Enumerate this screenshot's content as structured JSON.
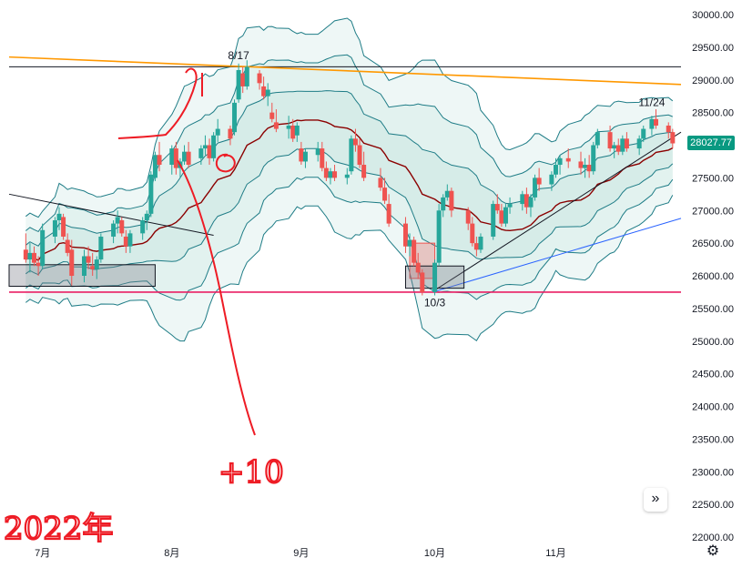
{
  "chart_data": {
    "type": "candlestick",
    "ylim": [
      21950,
      30100
    ],
    "y_ticks": [
      30000,
      29500,
      29000,
      28500,
      28000,
      27500,
      27000,
      26500,
      26000,
      25500,
      25000,
      24500,
      24000,
      23500,
      23000,
      22500,
      22000
    ],
    "y_tick_labels": [
      "30000.00",
      "29500.00",
      "29000.00",
      "28500.00",
      "28000.00",
      "27500.00",
      "27000.00",
      "26500.00",
      "26000.00",
      "25500.00",
      "25000.00",
      "24500.00",
      "24000.00",
      "23500.00",
      "23000.00",
      "22500.00",
      "22000.00"
    ],
    "x_labels": [
      "7月",
      "8月",
      "9月",
      "10月",
      "11月"
    ],
    "x_label_dates": [
      "2022-07-01",
      "2022-08-01",
      "2022-09-01",
      "2022-10-03",
      "2022-11-01"
    ],
    "dates": [
      "2022-06-27",
      "2022-06-28",
      "2022-06-29",
      "2022-06-30",
      "2022-07-01",
      "2022-07-04",
      "2022-07-05",
      "2022-07-06",
      "2022-07-07",
      "2022-07-08",
      "2022-07-11",
      "2022-07-12",
      "2022-07-13",
      "2022-07-14",
      "2022-07-15",
      "2022-07-18",
      "2022-07-19",
      "2022-07-20",
      "2022-07-21",
      "2022-07-22",
      "2022-07-25",
      "2022-07-26",
      "2022-07-27",
      "2022-07-28",
      "2022-07-29",
      "2022-08-01",
      "2022-08-02",
      "2022-08-03",
      "2022-08-04",
      "2022-08-05",
      "2022-08-08",
      "2022-08-09",
      "2022-08-10",
      "2022-08-11",
      "2022-08-12",
      "2022-08-15",
      "2022-08-16",
      "2022-08-17",
      "2022-08-18",
      "2022-08-19",
      "2022-08-22",
      "2022-08-23",
      "2022-08-24",
      "2022-08-25",
      "2022-08-26",
      "2022-08-29",
      "2022-08-30",
      "2022-08-31",
      "2022-09-01",
      "2022-09-02",
      "2022-09-05",
      "2022-09-06",
      "2022-09-07",
      "2022-09-08",
      "2022-09-09",
      "2022-09-12",
      "2022-09-13",
      "2022-09-14",
      "2022-09-15",
      "2022-09-16",
      "2022-09-20",
      "2022-09-21",
      "2022-09-22",
      "2022-09-26",
      "2022-09-27",
      "2022-09-28",
      "2022-09-29",
      "2022-09-30",
      "2022-10-03",
      "2022-10-04",
      "2022-10-05",
      "2022-10-06",
      "2022-10-07",
      "2022-10-11",
      "2022-10-12",
      "2022-10-13",
      "2022-10-14",
      "2022-10-17",
      "2022-10-18",
      "2022-10-19",
      "2022-10-20",
      "2022-10-21",
      "2022-10-24",
      "2022-10-25",
      "2022-10-26",
      "2022-10-27",
      "2022-10-28",
      "2022-10-31",
      "2022-11-01",
      "2022-11-02",
      "2022-11-04",
      "2022-11-07",
      "2022-11-08",
      "2022-11-09",
      "2022-11-10",
      "2022-11-11",
      "2022-11-14",
      "2022-11-15",
      "2022-11-16",
      "2022-11-17",
      "2022-11-18",
      "2022-11-21",
      "2022-11-22",
      "2022-11-24",
      "2022-11-25",
      "2022-11-28",
      "2022-11-29",
      "2022-11-30"
    ],
    "ohlc": [
      [
        26400,
        26650,
        26200,
        26250
      ],
      [
        26250,
        26500,
        26050,
        26350
      ],
      [
        26350,
        26450,
        26150,
        26200
      ],
      [
        26200,
        26300,
        26000,
        26150
      ],
      [
        26150,
        26800,
        26100,
        26700
      ],
      [
        26600,
        26900,
        26500,
        26850
      ],
      [
        26850,
        27050,
        26700,
        26950
      ],
      [
        26900,
        26950,
        26550,
        26600
      ],
      [
        26550,
        26650,
        26300,
        26350
      ],
      [
        26400,
        26550,
        25850,
        26000
      ],
      [
        26000,
        26400,
        25900,
        26300
      ],
      [
        26300,
        26450,
        26100,
        26200
      ],
      [
        26150,
        26350,
        26000,
        26100
      ],
      [
        26100,
        26300,
        25950,
        26250
      ],
      [
        26250,
        26650,
        26200,
        26600
      ],
      [
        26600,
        26850,
        26500,
        26800
      ],
      [
        26800,
        27000,
        26650,
        26900
      ],
      [
        26850,
        26900,
        26600,
        26650
      ],
      [
        26600,
        26700,
        26350,
        26450
      ],
      [
        26450,
        26700,
        26350,
        26650
      ],
      [
        26650,
        26900,
        26550,
        26850
      ],
      [
        26850,
        27000,
        26700,
        26950
      ],
      [
        26950,
        27600,
        26900,
        27550
      ],
      [
        27500,
        27900,
        27450,
        27850
      ],
      [
        27850,
        28050,
        27600,
        27700
      ],
      [
        27700,
        28000,
        27550,
        27950
      ],
      [
        27950,
        28050,
        27550,
        27650
      ],
      [
        27650,
        27800,
        27500,
        27750
      ],
      [
        27750,
        28000,
        27700,
        27900
      ],
      [
        27900,
        28050,
        27650,
        27700
      ],
      [
        27800,
        28000,
        27700,
        27950
      ],
      [
        27950,
        28150,
        27850,
        28000
      ],
      [
        28000,
        28100,
        27700,
        27800
      ],
      [
        27800,
        28200,
        27750,
        28150
      ],
      [
        28150,
        28400,
        28050,
        28250
      ],
      [
        28250,
        28300,
        28000,
        28100
      ],
      [
        28200,
        28700,
        28150,
        28650
      ],
      [
        28700,
        29250,
        28650,
        29150
      ],
      [
        29100,
        29200,
        28800,
        28900
      ],
      [
        28900,
        29300,
        28850,
        29200
      ],
      [
        29100,
        29150,
        28850,
        28950
      ],
      [
        28900,
        29050,
        28700,
        28750
      ],
      [
        28750,
        28950,
        28600,
        28850
      ],
      [
        28500,
        28650,
        28350,
        28400
      ],
      [
        28350,
        28550,
        28200,
        28250
      ],
      [
        28250,
        28450,
        28100,
        28300
      ],
      [
        28300,
        28400,
        28050,
        28100
      ],
      [
        28150,
        28350,
        28050,
        28300
      ],
      [
        27950,
        28050,
        27700,
        27750
      ],
      [
        27750,
        27950,
        27650,
        27900
      ],
      [
        27850,
        28050,
        27750,
        27950
      ],
      [
        27950,
        28050,
        27600,
        27650
      ],
      [
        27650,
        27750,
        27450,
        27500
      ],
      [
        27500,
        27650,
        27400,
        27600
      ],
      [
        27600,
        27700,
        27450,
        27500
      ],
      [
        27500,
        27650,
        27400,
        27550
      ],
      [
        27600,
        28150,
        27550,
        28100
      ],
      [
        28100,
        28250,
        27900,
        28000
      ],
      [
        28000,
        28100,
        27650,
        27700
      ],
      [
        27700,
        27900,
        27450,
        27500
      ],
      [
        27500,
        27650,
        27300,
        27350
      ],
      [
        27350,
        27500,
        27100,
        27150
      ],
      [
        27100,
        27250,
        26750,
        26800
      ],
      [
        26800,
        26900,
        26350,
        26450
      ],
      [
        26450,
        26650,
        26300,
        26550
      ],
      [
        26550,
        26600,
        26150,
        26200
      ],
      [
        26200,
        26350,
        25950,
        26050
      ],
      [
        26050,
        26100,
        25700,
        25750
      ],
      [
        25750,
        26250,
        25700,
        26200
      ],
      [
        26200,
        27100,
        26150,
        27000
      ],
      [
        27000,
        27250,
        26900,
        27200
      ],
      [
        27200,
        27400,
        27150,
        27300
      ],
      [
        27300,
        27350,
        26900,
        27000
      ],
      [
        27000,
        27050,
        26700,
        26800
      ],
      [
        26800,
        26900,
        26450,
        26500
      ],
      [
        26500,
        26600,
        26300,
        26400
      ],
      [
        26400,
        26650,
        26350,
        26600
      ],
      [
        26600,
        27150,
        26550,
        27100
      ],
      [
        27100,
        27250,
        26950,
        27000
      ],
      [
        27000,
        27100,
        26750,
        26800
      ],
      [
        26800,
        27100,
        26750,
        27050
      ],
      [
        27050,
        27200,
        26950,
        27100
      ],
      [
        27100,
        27300,
        27000,
        27250
      ],
      [
        27250,
        27350,
        26950,
        27050
      ],
      [
        27050,
        27250,
        26900,
        27200
      ],
      [
        27200,
        27550,
        27150,
        27500
      ],
      [
        27500,
        27650,
        27300,
        27400
      ],
      [
        27400,
        27600,
        27300,
        27550
      ],
      [
        27550,
        27800,
        27500,
        27700
      ],
      [
        27700,
        27850,
        27550,
        27800
      ],
      [
        27800,
        27950,
        27650,
        27750
      ],
      [
        27750,
        27900,
        27550,
        27650
      ],
      [
        27650,
        27800,
        27500,
        27700
      ],
      [
        27700,
        27850,
        27500,
        27600
      ],
      [
        27600,
        28050,
        27550,
        28000
      ],
      [
        28000,
        28250,
        27950,
        28200
      ],
      [
        28200,
        28300,
        27900,
        27950
      ],
      [
        27950,
        28050,
        27800,
        28000
      ],
      [
        28000,
        28100,
        27850,
        27900
      ],
      [
        27900,
        28150,
        27850,
        28100
      ],
      [
        28100,
        28200,
        27900,
        27950
      ],
      [
        27950,
        28150,
        27850,
        28100
      ],
      [
        28100,
        28300,
        28050,
        28250
      ],
      [
        28250,
        28450,
        28150,
        28400
      ],
      [
        28400,
        28550,
        28250,
        28300
      ],
      [
        28300,
        28350,
        28100,
        28200
      ],
      [
        28200,
        28250,
        27950,
        28027.77
      ]
    ],
    "annotations": [
      {
        "text": "8/17",
        "date": "2022-08-17",
        "price": 29320
      },
      {
        "text": "10/3",
        "date": "2022-10-03",
        "price": 25530
      },
      {
        "text": "11/24",
        "date": "2022-11-24",
        "price": 28600
      }
    ],
    "horizontal_lines": [
      {
        "name": "resistance-line",
        "price": 29200,
        "color": "#131722"
      },
      {
        "name": "support-line",
        "price": 25750,
        "color": "#e91e63"
      }
    ],
    "trend_lines": [
      {
        "name": "orange-trendline",
        "from": [
          "2022-06-23",
          29350
        ],
        "to": [
          "2022-12-01",
          28930
        ],
        "color": "#ff9800"
      },
      {
        "name": "black-downtrend-line",
        "from": [
          "2022-06-23",
          27250
        ],
        "to": [
          "2022-08-11",
          26620
        ],
        "color": "#131722"
      },
      {
        "name": "black-uptrend-line",
        "from": [
          "2022-10-03",
          25780
        ],
        "to": [
          "2022-12-01",
          28200
        ],
        "color": "#131722"
      },
      {
        "name": "blue-uptrend-line",
        "from": [
          "2022-10-03",
          25760
        ],
        "to": [
          "2022-12-01",
          26880
        ],
        "color": "#2962ff"
      }
    ],
    "boxes": [
      {
        "name": "july-low-box",
        "x0": "2022-06-23",
        "x1": "2022-07-28",
        "y0": 25840,
        "y1": 26170,
        "color": "#131722"
      },
      {
        "name": "september-drop-box",
        "x0": "2022-09-27",
        "x1": "2022-10-03",
        "y0": 25960,
        "y1": 26500,
        "color": "#ef5350"
      },
      {
        "name": "october-low-box",
        "x0": "2022-09-26",
        "x1": "2022-10-10",
        "y0": 25810,
        "y1": 26150,
        "color": "#131722"
      }
    ],
    "last_price_label": "28027.77",
    "colors": {
      "up": "#26a69a",
      "down": "#ef5350",
      "ma": "#8b0000",
      "band": "#1e7c86",
      "band_fill": "#e6f4f2",
      "last_price": "#089981"
    },
    "handwritten": {
      "year_text": "2022年",
      "mark_text": "+10"
    }
  },
  "controls": {
    "scroll_icon": "»",
    "settings_icon": "⚙"
  }
}
